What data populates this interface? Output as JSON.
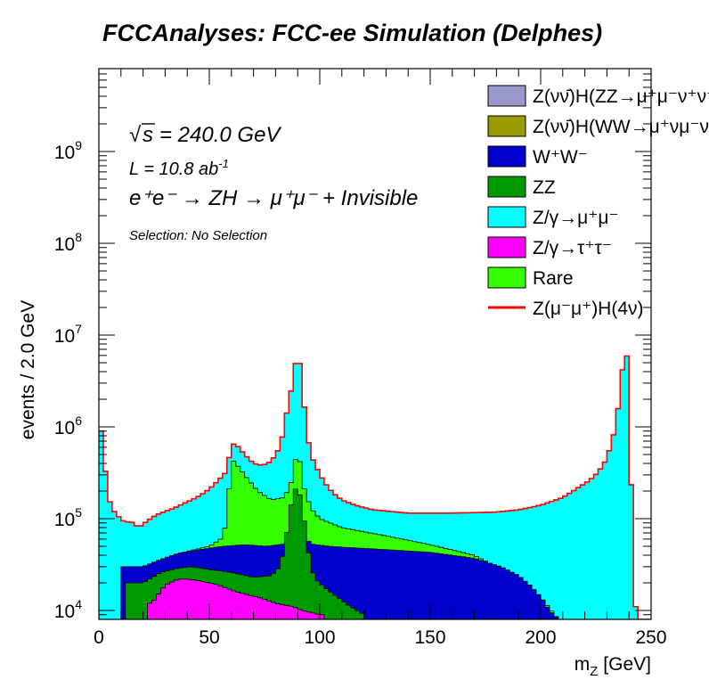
{
  "chart_data": {
    "type": "area",
    "title": "FCCAnalyses: FCC-ee Simulation (Delphes)",
    "xlabel": "m_Z [GeV]",
    "ylabel": "events / 2.0 GeV",
    "xlim": [
      0,
      250
    ],
    "ylim": [
      8000,
      8000000000
    ],
    "yscale": "log",
    "stacked": true,
    "bin_width": 2.0,
    "x_ticks": [
      "0",
      "50",
      "100",
      "150",
      "200",
      "250"
    ],
    "y_ticks": [
      {
        "base": "10",
        "exp": "4"
      },
      {
        "base": "10",
        "exp": "5"
      },
      {
        "base": "10",
        "exp": "6"
      },
      {
        "base": "10",
        "exp": "7"
      },
      {
        "base": "10",
        "exp": "8"
      },
      {
        "base": "10",
        "exp": "9"
      }
    ],
    "legend_position": "top-right",
    "annotations": {
      "sqrt_s": "= 240.0 GeV",
      "lumi_pre": "L = 10.8 ab",
      "lumi_exp": "-1",
      "process": "e⁺e⁻ → ZH → μ⁺μ⁻ + Invisible",
      "selection": "Selection: No Selection"
    },
    "legend": [
      {
        "label": "Z(νν̄)H(ZZ→μ⁺μ⁻ν⁺ν⁻)",
        "color": "#9999cc",
        "kind": "box"
      },
      {
        "label": "Z(νν̄)H(WW→μ⁺νμ⁻ν)",
        "color": "#999900",
        "kind": "box"
      },
      {
        "label": "W⁺W⁻",
        "color": "#0000cc",
        "kind": "box"
      },
      {
        "label": "ZZ",
        "color": "#009900",
        "kind": "box"
      },
      {
        "label": "Z/γ→μ⁺μ⁻",
        "color": "#00ffff",
        "kind": "box"
      },
      {
        "label": "Z/γ→τ⁺τ⁻",
        "color": "#ff00ff",
        "kind": "box"
      },
      {
        "label": "Rare",
        "color": "#33ff00",
        "kind": "box"
      },
      {
        "label": "Z(μ⁻μ⁺)H(4ν)",
        "color": "#ff0000",
        "kind": "line"
      }
    ],
    "stack_order": [
      "Z/γ→τ⁺τ⁻",
      "ZZ",
      "W⁺W⁻",
      "Rare",
      "Z/γ→μ⁺μ⁻",
      "Z(μ⁻μ⁺)H(4ν)"
    ],
    "series": [
      {
        "name": "Z/γ→τ⁺τ⁻",
        "color": "#ff00ff",
        "kind": "stack",
        "x": [
          0,
          20,
          24,
          30,
          36,
          40,
          46,
          54,
          62,
          72,
          80,
          88,
          92,
          96,
          100,
          106
        ],
        "y": [
          0,
          0,
          12000,
          19000,
          22000,
          22000,
          21000,
          19000,
          16000,
          14000,
          12000,
          11000,
          10000,
          9500,
          9000,
          0
        ]
      },
      {
        "name": "ZZ",
        "color": "#009900",
        "kind": "stack",
        "x": [
          0,
          12,
          14,
          20,
          28,
          36,
          42,
          50,
          60,
          70,
          78,
          82,
          84,
          86,
          88,
          90,
          92,
          94,
          96,
          98,
          102,
          108,
          114,
          120,
          122
        ],
        "y": [
          0,
          0,
          20000,
          20000,
          26000,
          29000,
          30000,
          28000,
          26000,
          23000,
          24000,
          30000,
          50000,
          100000,
          200000,
          220000,
          150000,
          60000,
          30000,
          22000,
          18000,
          14000,
          11000,
          9000,
          0
        ]
      },
      {
        "name": "W⁺W⁻",
        "color": "#0000cc",
        "kind": "stack",
        "x": [
          0,
          10,
          12,
          20,
          28,
          36,
          46,
          56,
          66,
          76,
          84,
          88,
          90,
          92,
          96,
          104,
          116,
          130,
          150,
          170,
          182,
          190,
          196,
          200,
          204,
          208,
          210
        ],
        "y": [
          0,
          0,
          30000,
          30000,
          36000,
          42000,
          46000,
          50000,
          52000,
          50000,
          53000,
          70000,
          120000,
          70000,
          53000,
          50000,
          48000,
          46000,
          43000,
          37000,
          30000,
          24000,
          18000,
          14000,
          10000,
          8000,
          0
        ]
      },
      {
        "name": "Rare",
        "color": "#33ff00",
        "kind": "stack",
        "x": [
          0,
          10,
          12,
          20,
          30,
          40,
          50,
          56,
          58,
          60,
          62,
          66,
          72,
          78,
          84,
          88,
          90,
          92,
          96,
          100,
          110,
          130,
          150,
          170,
          190,
          200,
          208,
          210
        ],
        "y": [
          0,
          0,
          30000,
          30000,
          37000,
          44000,
          50000,
          62000,
          100000,
          450000,
          400000,
          300000,
          200000,
          160000,
          170000,
          280000,
          700000,
          250000,
          130000,
          100000,
          80000,
          65000,
          52000,
          40000,
          22000,
          14000,
          8000,
          0
        ]
      },
      {
        "name": "Z/γ→μ⁺μ⁻",
        "color": "#00ffff",
        "kind": "stack",
        "x": [
          0,
          1,
          2,
          4,
          6,
          8,
          10,
          12,
          14,
          18,
          22,
          26,
          30,
          34,
          38,
          42,
          46,
          50,
          54,
          58,
          60,
          62,
          66,
          70,
          74,
          78,
          82,
          84,
          86,
          88,
          90,
          92,
          94,
          96,
          98,
          102,
          106,
          110,
          116,
          124,
          140,
          160,
          180,
          190,
          200,
          210,
          216,
          222,
          226,
          230,
          234,
          236,
          238,
          240,
          242,
          244
        ],
        "y": [
          300000,
          900000,
          600000,
          180000,
          130000,
          110000,
          100000,
          90000,
          95000,
          80000,
          95000,
          110000,
          120000,
          130000,
          145000,
          160000,
          180000,
          210000,
          260000,
          330000,
          650000,
          650000,
          500000,
          400000,
          380000,
          420000,
          600000,
          1000000,
          2000000,
          3000000,
          8000000,
          3000000,
          900000,
          500000,
          380000,
          250000,
          190000,
          160000,
          140000,
          125000,
          115000,
          115000,
          118000,
          125000,
          140000,
          170000,
          210000,
          260000,
          320000,
          450000,
          1000000,
          2500000,
          7000000,
          5000000,
          11000,
          11000
        ]
      },
      {
        "name": "Z(μ⁻μ⁺)H(4ν)",
        "color": "#ff0000",
        "kind": "line",
        "x": [
          0,
          1,
          2,
          4,
          6,
          8,
          10,
          12,
          14,
          18,
          22,
          26,
          30,
          34,
          38,
          42,
          46,
          50,
          54,
          58,
          60,
          62,
          66,
          70,
          74,
          78,
          82,
          84,
          86,
          88,
          90,
          92,
          94,
          96,
          98,
          102,
          106,
          110,
          116,
          124,
          140,
          160,
          180,
          190,
          200,
          210,
          216,
          222,
          226,
          230,
          234,
          236,
          238,
          240,
          242,
          244
        ],
        "y": [
          300000,
          900000,
          600000,
          180000,
          130000,
          110000,
          100000,
          90000,
          95000,
          80000,
          95000,
          110000,
          120000,
          130000,
          145000,
          160000,
          180000,
          210000,
          260000,
          330000,
          650000,
          650000,
          500000,
          400000,
          380000,
          420000,
          600000,
          1000000,
          2000000,
          3000000,
          8000000,
          3000000,
          900000,
          500000,
          380000,
          250000,
          190000,
          160000,
          140000,
          125000,
          115000,
          115000,
          118000,
          125000,
          140000,
          170000,
          210000,
          260000,
          320000,
          450000,
          1000000,
          2500000,
          7000000,
          5000000,
          11000,
          11000
        ]
      }
    ]
  }
}
